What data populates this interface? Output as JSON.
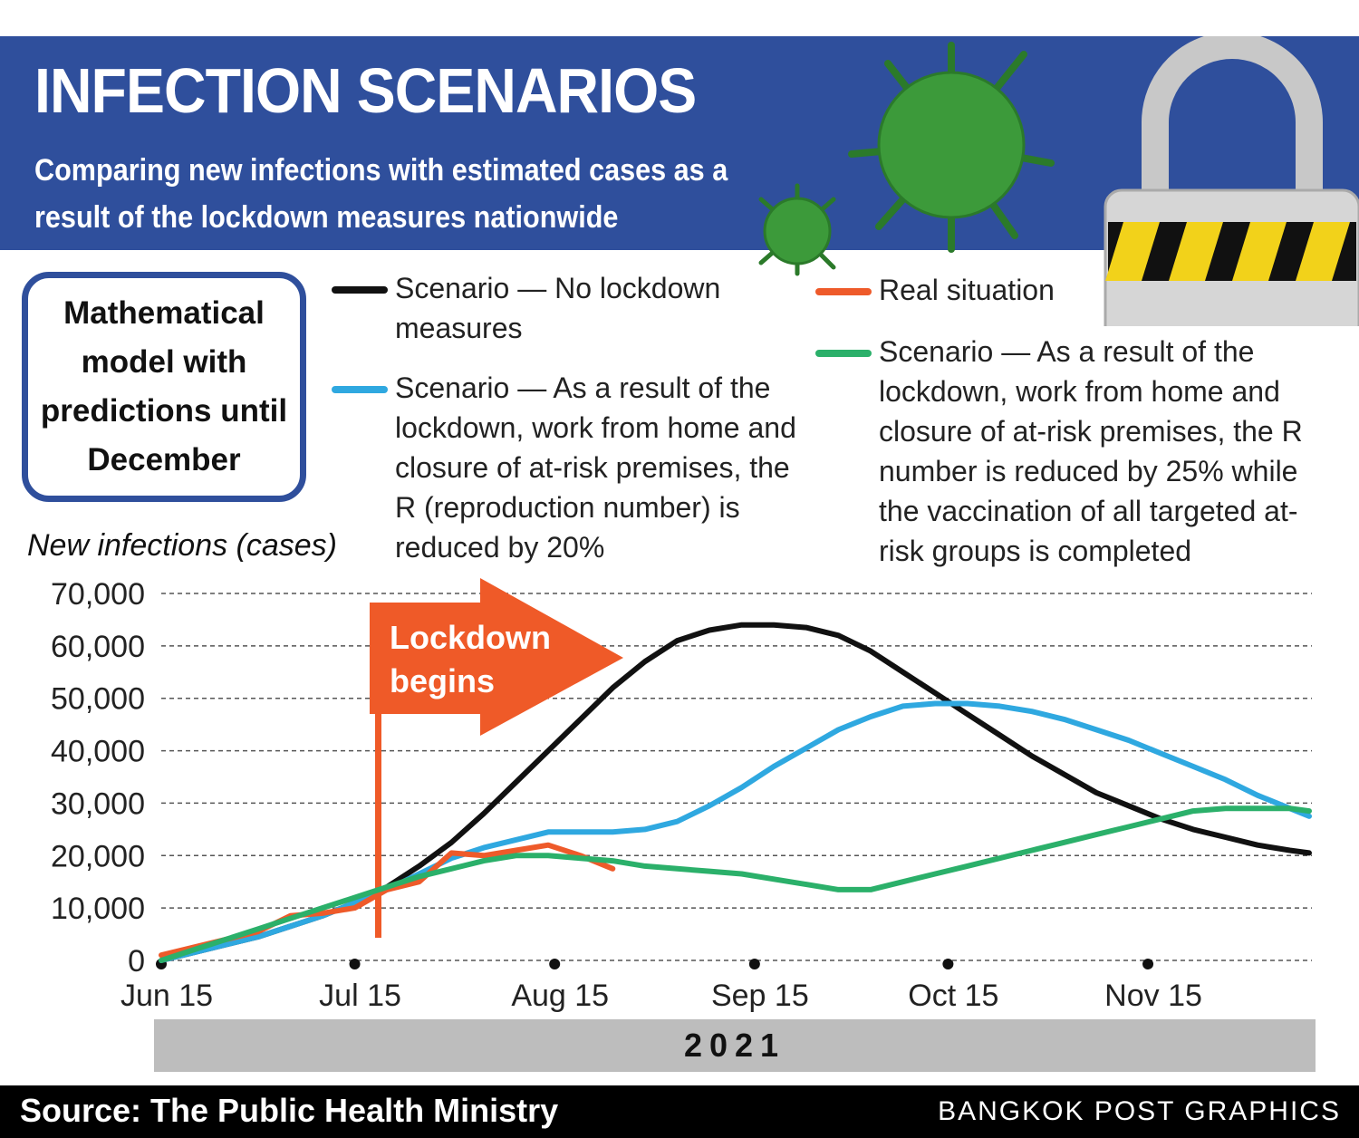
{
  "chart_data": {
    "type": "line",
    "title": "INFECTION SCENARIOS",
    "subtitle": "Comparing new infections with estimated cases as a result of the lockdown measures nationwide",
    "note": "Mathematical model with predictions until December",
    "y_label": "New infections (cases)",
    "annotation": "Lockdown begins",
    "year_label": "2021",
    "source": "Source: The Public Health Ministry",
    "credit": "BANGKOK POST GRAPHICS",
    "x": [
      "2021-06-15",
      "2021-06-20",
      "2021-06-25",
      "2021-06-30",
      "2021-07-05",
      "2021-07-10",
      "2021-07-15",
      "2021-07-20",
      "2021-07-25",
      "2021-07-30",
      "2021-08-04",
      "2021-08-09",
      "2021-08-14",
      "2021-08-19",
      "2021-08-24",
      "2021-08-29",
      "2021-09-03",
      "2021-09-08",
      "2021-09-13",
      "2021-09-18",
      "2021-09-23",
      "2021-09-28",
      "2021-10-03",
      "2021-10-08",
      "2021-10-13",
      "2021-10-18",
      "2021-10-23",
      "2021-10-28",
      "2021-11-02",
      "2021-11-07",
      "2021-11-12",
      "2021-11-17",
      "2021-11-22",
      "2021-11-27",
      "2021-12-02",
      "2021-12-07",
      "2021-12-10"
    ],
    "xlim": [
      "2021-06-15",
      "2021-12-10"
    ],
    "xticks": [
      {
        "value": "2021-06-15",
        "label": "Jun 15"
      },
      {
        "value": "2021-07-15",
        "label": "Jul 15"
      },
      {
        "value": "2021-08-15",
        "label": "Aug 15"
      },
      {
        "value": "2021-09-15",
        "label": "Sep 15"
      },
      {
        "value": "2021-10-15",
        "label": "Oct 15"
      },
      {
        "value": "2021-11-15",
        "label": "Nov 15"
      }
    ],
    "ylim": [
      0,
      70000
    ],
    "yticks": [
      {
        "value": 0,
        "label": "0"
      },
      {
        "value": 10000,
        "label": "10,000"
      },
      {
        "value": 20000,
        "label": "20,000"
      },
      {
        "value": 30000,
        "label": "30,000"
      },
      {
        "value": 40000,
        "label": "40,000"
      },
      {
        "value": 50000,
        "label": "50,000"
      },
      {
        "value": 60000,
        "label": "60,000"
      },
      {
        "value": 70000,
        "label": "70,000"
      }
    ],
    "grid": true,
    "series": [
      {
        "name": "Scenario — No lockdown measures",
        "color": "#111111",
        "values": [
          0,
          1500,
          3000,
          4500,
          6500,
          8500,
          11000,
          14000,
          18000,
          22500,
          28000,
          34000,
          40000,
          46000,
          52000,
          57000,
          61000,
          63000,
          64000,
          64000,
          63500,
          62000,
          59000,
          55000,
          51000,
          47000,
          43000,
          39000,
          35500,
          32000,
          29500,
          27000,
          25000,
          23500,
          22000,
          21000,
          20500
        ]
      },
      {
        "name": "Scenario — As a result of the lockdown, work from home and closure of at-risk premises, the R (reproduction number) is reduced by 20%",
        "color": "#2fa8e0",
        "values": [
          0,
          1500,
          3000,
          4500,
          6500,
          8500,
          11000,
          13500,
          16500,
          19500,
          21500,
          23000,
          24500,
          24500,
          24500,
          25000,
          26500,
          29500,
          33000,
          37000,
          40500,
          44000,
          46500,
          48500,
          49000,
          49000,
          48500,
          47500,
          46000,
          44000,
          42000,
          39500,
          37000,
          34500,
          31500,
          29000,
          27500
        ]
      },
      {
        "name": "Real situation",
        "color": "#ee5a2a",
        "values": [
          1000,
          2500,
          4000,
          5500,
          8500,
          9000,
          10000,
          13500,
          15000,
          20500,
          20000,
          21000,
          22000,
          20000,
          17500,
          null,
          null,
          null,
          null,
          null,
          null,
          null,
          null,
          null,
          null,
          null,
          null,
          null,
          null,
          null,
          null,
          null,
          null,
          null,
          null,
          null,
          null
        ]
      },
      {
        "name": "Scenario — As a result of the lockdown, work from home and closure of at-risk premises, the R number is reduced by 25% while the vaccination of all targeted at-risk groups is completed",
        "color": "#2bb06a",
        "values": [
          0,
          2000,
          4000,
          6000,
          8000,
          10000,
          12000,
          14000,
          16000,
          17500,
          19000,
          20000,
          20000,
          19500,
          19000,
          18000,
          17500,
          17000,
          16500,
          15500,
          14500,
          13500,
          13500,
          15000,
          16500,
          18000,
          19500,
          21000,
          22500,
          24000,
          25500,
          27000,
          28500,
          29000,
          29000,
          29000,
          28500
        ]
      }
    ]
  }
}
